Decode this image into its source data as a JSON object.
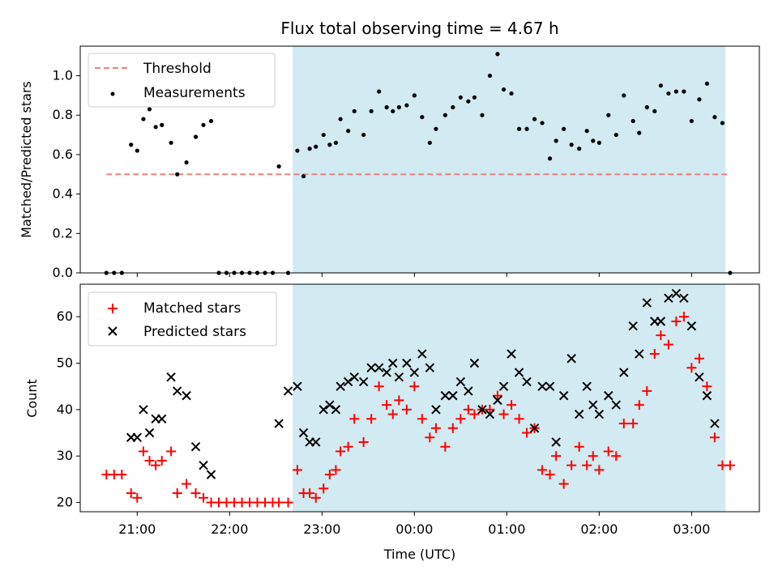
{
  "figure": {
    "title": "Flux total observing time = 4.67 h",
    "xlabel": "Time (UTC)",
    "x_tick_labels": [
      "21:00",
      "22:00",
      "23:00",
      "00:00",
      "01:00",
      "02:00",
      "03:00"
    ],
    "colors": {
      "threshold": "#f08080",
      "measurements": "#000000",
      "matched": "#ff0000",
      "predicted": "#000000",
      "shade": "#add8e6"
    }
  },
  "chart_data": [
    {
      "type": "scatter",
      "title": "Flux total observing time = 4.67 h",
      "xlabel": "",
      "ylabel": "Matched/Predicted stars",
      "xlim": [
        "2023-01-01T20:23",
        "2023-01-02T03:44"
      ],
      "ylim": [
        0,
        1.15
      ],
      "y_ticks": [
        "0.0",
        "0.2",
        "0.4",
        "0.6",
        "0.8",
        "1.0"
      ],
      "legend": "upper-left",
      "shaded_span": [
        "22:41",
        "03:22"
      ],
      "threshold": {
        "name": "Threshold",
        "y": 0.5,
        "x": [
          "20:40",
          "03:23"
        ]
      },
      "series": [
        {
          "name": "Measurements",
          "points": [
            [
              "20:40",
              0.0
            ],
            [
              "20:45",
              0.0
            ],
            [
              "20:50",
              0.0
            ],
            [
              "20:56",
              0.65
            ],
            [
              "21:00",
              0.62
            ],
            [
              "21:04",
              0.78
            ],
            [
              "21:08",
              0.83
            ],
            [
              "21:12",
              0.74
            ],
            [
              "21:16",
              0.75
            ],
            [
              "21:22",
              0.66
            ],
            [
              "21:26",
              0.5
            ],
            [
              "21:32",
              0.56
            ],
            [
              "21:38",
              0.69
            ],
            [
              "21:43",
              0.75
            ],
            [
              "21:48",
              0.77
            ],
            [
              "21:53",
              0.0
            ],
            [
              "21:58",
              0.0
            ],
            [
              "22:03",
              0.0
            ],
            [
              "22:08",
              0.0
            ],
            [
              "22:13",
              0.0
            ],
            [
              "22:18",
              0.0
            ],
            [
              "22:23",
              0.0
            ],
            [
              "22:28",
              0.0
            ],
            [
              "22:32",
              0.54
            ],
            [
              "22:38",
              0.0
            ],
            [
              "22:44",
              0.62
            ],
            [
              "22:48",
              0.49
            ],
            [
              "22:52",
              0.63
            ],
            [
              "22:56",
              0.64
            ],
            [
              "23:01",
              0.7
            ],
            [
              "23:05",
              0.65
            ],
            [
              "23:09",
              0.66
            ],
            [
              "23:12",
              0.78
            ],
            [
              "23:17",
              0.72
            ],
            [
              "23:21",
              0.82
            ],
            [
              "23:27",
              0.7
            ],
            [
              "23:32",
              0.82
            ],
            [
              "23:37",
              0.92
            ],
            [
              "23:42",
              0.84
            ],
            [
              "23:46",
              0.82
            ],
            [
              "23:50",
              0.84
            ],
            [
              "23:55",
              0.85
            ],
            [
              "00:00",
              0.9
            ],
            [
              "00:05",
              0.79
            ],
            [
              "00:10",
              0.66
            ],
            [
              "00:14",
              0.73
            ],
            [
              "00:20",
              0.8
            ],
            [
              "00:25",
              0.84
            ],
            [
              "00:30",
              0.89
            ],
            [
              "00:35",
              0.87
            ],
            [
              "00:39",
              0.89
            ],
            [
              "00:44",
              0.8
            ],
            [
              "00:49",
              1.0
            ],
            [
              "00:54",
              1.11
            ],
            [
              "00:58",
              0.93
            ],
            [
              "01:03",
              0.91
            ],
            [
              "01:08",
              0.73
            ],
            [
              "01:13",
              0.73
            ],
            [
              "01:18",
              0.78
            ],
            [
              "01:23",
              0.76
            ],
            [
              "01:28",
              0.58
            ],
            [
              "01:32",
              0.67
            ],
            [
              "01:37",
              0.73
            ],
            [
              "01:42",
              0.65
            ],
            [
              "01:47",
              0.63
            ],
            [
              "01:52",
              0.72
            ],
            [
              "01:56",
              0.67
            ],
            [
              "02:00",
              0.66
            ],
            [
              "02:06",
              0.8
            ],
            [
              "02:11",
              0.7
            ],
            [
              "02:16",
              0.9
            ],
            [
              "02:22",
              0.77
            ],
            [
              "02:26",
              0.71
            ],
            [
              "02:31",
              0.84
            ],
            [
              "02:36",
              0.82
            ],
            [
              "02:40",
              0.95
            ],
            [
              "02:45",
              0.91
            ],
            [
              "02:50",
              0.92
            ],
            [
              "02:55",
              0.92
            ],
            [
              "03:00",
              0.77
            ],
            [
              "03:05",
              0.88
            ],
            [
              "03:10",
              0.96
            ],
            [
              "03:15",
              0.79
            ],
            [
              "03:20",
              0.76
            ],
            [
              "03:25",
              0.0
            ]
          ]
        }
      ]
    },
    {
      "type": "scatter",
      "title": "",
      "xlabel": "Time (UTC)",
      "ylabel": "Count",
      "xlim": [
        "2023-01-01T20:23",
        "2023-01-02T03:44"
      ],
      "ylim": [
        18,
        67
      ],
      "y_ticks": [
        "20",
        "30",
        "40",
        "50",
        "60"
      ],
      "legend": "upper-left",
      "shaded_span": [
        "22:41",
        "03:22"
      ],
      "series": [
        {
          "name": "Matched stars",
          "marker": "plus",
          "points": [
            [
              "20:40",
              26
            ],
            [
              "20:45",
              26
            ],
            [
              "20:50",
              26
            ],
            [
              "20:56",
              22
            ],
            [
              "21:00",
              21
            ],
            [
              "21:04",
              31
            ],
            [
              "21:08",
              29
            ],
            [
              "21:12",
              28
            ],
            [
              "21:16",
              29
            ],
            [
              "21:22",
              31
            ],
            [
              "21:26",
              22
            ],
            [
              "21:32",
              24
            ],
            [
              "21:38",
              22
            ],
            [
              "21:43",
              21
            ],
            [
              "21:48",
              20
            ],
            [
              "21:53",
              20
            ],
            [
              "21:58",
              20
            ],
            [
              "22:03",
              20
            ],
            [
              "22:08",
              20
            ],
            [
              "22:13",
              20
            ],
            [
              "22:18",
              20
            ],
            [
              "22:23",
              20
            ],
            [
              "22:28",
              20
            ],
            [
              "22:32",
              20
            ],
            [
              "22:38",
              20
            ],
            [
              "22:44",
              27
            ],
            [
              "22:48",
              22
            ],
            [
              "22:52",
              22
            ],
            [
              "22:56",
              21
            ],
            [
              "23:01",
              23
            ],
            [
              "23:05",
              26
            ],
            [
              "23:09",
              27
            ],
            [
              "23:12",
              31
            ],
            [
              "23:17",
              32
            ],
            [
              "23:21",
              38
            ],
            [
              "23:27",
              33
            ],
            [
              "23:32",
              38
            ],
            [
              "23:37",
              45
            ],
            [
              "23:42",
              41
            ],
            [
              "23:46",
              39
            ],
            [
              "23:50",
              42
            ],
            [
              "23:55",
              40
            ],
            [
              "00:00",
              45
            ],
            [
              "00:05",
              38
            ],
            [
              "00:10",
              34
            ],
            [
              "00:14",
              36
            ],
            [
              "00:20",
              32
            ],
            [
              "00:25",
              36
            ],
            [
              "00:30",
              38
            ],
            [
              "00:35",
              40
            ],
            [
              "00:39",
              39
            ],
            [
              "00:44",
              40
            ],
            [
              "00:49",
              40
            ],
            [
              "00:54",
              43
            ],
            [
              "00:58",
              39
            ],
            [
              "01:03",
              41
            ],
            [
              "01:08",
              38
            ],
            [
              "01:13",
              35
            ],
            [
              "01:18",
              36
            ],
            [
              "01:23",
              27
            ],
            [
              "01:28",
              26
            ],
            [
              "01:32",
              30
            ],
            [
              "01:37",
              24
            ],
            [
              "01:42",
              28
            ],
            [
              "01:47",
              32
            ],
            [
              "01:52",
              28
            ],
            [
              "01:56",
              30
            ],
            [
              "02:00",
              27
            ],
            [
              "02:06",
              31
            ],
            [
              "02:11",
              30
            ],
            [
              "02:16",
              37
            ],
            [
              "02:22",
              37
            ],
            [
              "02:26",
              41
            ],
            [
              "02:31",
              44
            ],
            [
              "02:36",
              52
            ],
            [
              "02:40",
              56
            ],
            [
              "02:45",
              54
            ],
            [
              "02:50",
              59
            ],
            [
              "02:55",
              60
            ],
            [
              "03:00",
              49
            ],
            [
              "03:05",
              51
            ],
            [
              "03:10",
              45
            ],
            [
              "03:15",
              34
            ],
            [
              "03:20",
              28
            ],
            [
              "03:25",
              28
            ]
          ]
        },
        {
          "name": "Predicted stars",
          "marker": "x",
          "points": [
            [
              "20:56",
              34
            ],
            [
              "21:00",
              34
            ],
            [
              "21:04",
              40
            ],
            [
              "21:08",
              35
            ],
            [
              "21:12",
              38
            ],
            [
              "21:16",
              38
            ],
            [
              "21:22",
              47
            ],
            [
              "21:26",
              44
            ],
            [
              "21:32",
              43
            ],
            [
              "21:38",
              32
            ],
            [
              "21:43",
              28
            ],
            [
              "21:48",
              26
            ],
            [
              "22:32",
              37
            ],
            [
              "22:38",
              44
            ],
            [
              "22:44",
              45
            ],
            [
              "22:48",
              35
            ],
            [
              "22:52",
              33
            ],
            [
              "22:56",
              33
            ],
            [
              "23:01",
              40
            ],
            [
              "23:05",
              41
            ],
            [
              "23:09",
              40
            ],
            [
              "23:12",
              45
            ],
            [
              "23:17",
              46
            ],
            [
              "23:21",
              47
            ],
            [
              "23:27",
              46
            ],
            [
              "23:32",
              49
            ],
            [
              "23:37",
              49
            ],
            [
              "23:42",
              48
            ],
            [
              "23:46",
              50
            ],
            [
              "23:50",
              47
            ],
            [
              "23:55",
              50
            ],
            [
              "00:00",
              48
            ],
            [
              "00:05",
              52
            ],
            [
              "00:10",
              49
            ],
            [
              "00:14",
              40
            ],
            [
              "00:20",
              43
            ],
            [
              "00:25",
              43
            ],
            [
              "00:30",
              46
            ],
            [
              "00:35",
              44
            ],
            [
              "00:39",
              50
            ],
            [
              "00:44",
              40
            ],
            [
              "00:49",
              39
            ],
            [
              "00:54",
              42
            ],
            [
              "00:58",
              45
            ],
            [
              "01:03",
              52
            ],
            [
              "01:08",
              48
            ],
            [
              "01:13",
              46
            ],
            [
              "01:18",
              36
            ],
            [
              "01:23",
              45
            ],
            [
              "01:28",
              45
            ],
            [
              "01:32",
              33
            ],
            [
              "01:37",
              43
            ],
            [
              "01:42",
              51
            ],
            [
              "01:47",
              39
            ],
            [
              "01:52",
              45
            ],
            [
              "01:56",
              41
            ],
            [
              "02:00",
              39
            ],
            [
              "02:06",
              43
            ],
            [
              "02:11",
              41
            ],
            [
              "02:16",
              48
            ],
            [
              "02:22",
              58
            ],
            [
              "02:26",
              52
            ],
            [
              "02:31",
              63
            ],
            [
              "02:36",
              59
            ],
            [
              "02:40",
              59
            ],
            [
              "02:45",
              64
            ],
            [
              "02:50",
              65
            ],
            [
              "02:55",
              64
            ],
            [
              "03:00",
              58
            ],
            [
              "03:05",
              47
            ],
            [
              "03:10",
              43
            ],
            [
              "03:15",
              37
            ]
          ]
        }
      ]
    }
  ]
}
